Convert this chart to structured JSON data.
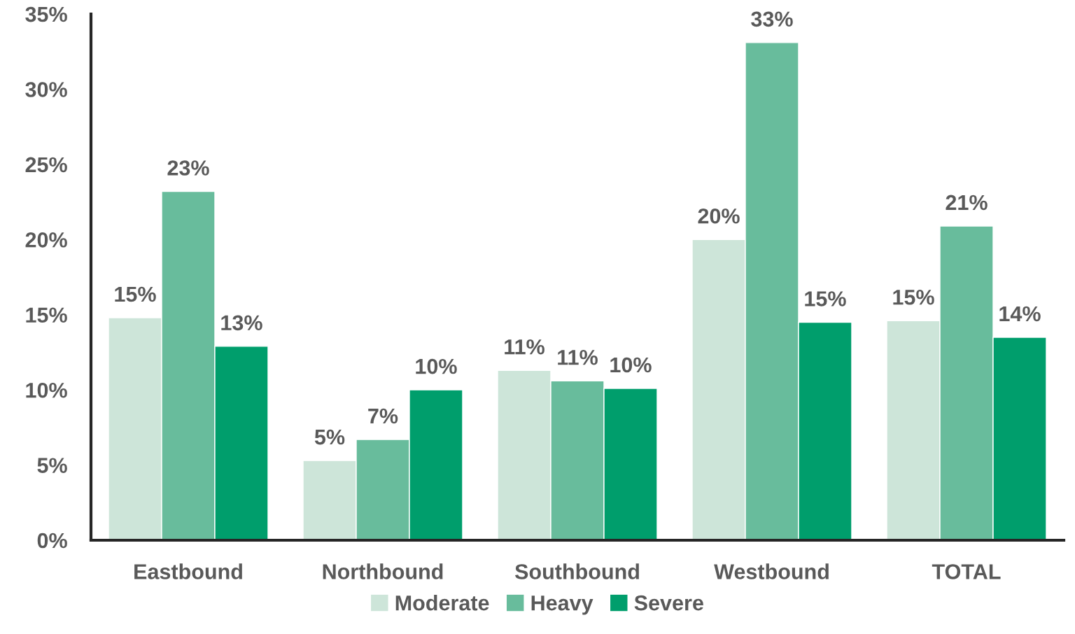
{
  "chart_data": {
    "type": "bar",
    "categories": [
      "Eastbound",
      "Northbound",
      "Southbound",
      "Westbound",
      "TOTAL"
    ],
    "series": [
      {
        "name": "Moderate",
        "color": "#cde5d9",
        "values": [
          14.8,
          5.3,
          11.3,
          20.0,
          14.6
        ],
        "value_labels": [
          "15%",
          "5%",
          "11%",
          "20%",
          "15%"
        ]
      },
      {
        "name": "Heavy",
        "color": "#68bc9c",
        "values": [
          23.2,
          6.7,
          10.6,
          33.1,
          20.9
        ],
        "value_labels": [
          "23%",
          "7%",
          "11%",
          "33%",
          "21%"
        ]
      },
      {
        "name": "Severe",
        "color": "#009e6c",
        "values": [
          12.9,
          10.0,
          10.1,
          14.5,
          13.5
        ],
        "value_labels": [
          "13%",
          "10%",
          "10%",
          "15%",
          "14%"
        ]
      }
    ],
    "ylim": [
      0,
      35
    ],
    "yticks": [
      {
        "value": 0,
        "label": "0%"
      },
      {
        "value": 5,
        "label": "5%"
      },
      {
        "value": 10,
        "label": "10%"
      },
      {
        "value": 15,
        "label": "15%"
      },
      {
        "value": 20,
        "label": "20%"
      },
      {
        "value": 25,
        "label": "25%"
      },
      {
        "value": 30,
        "label": "30%"
      },
      {
        "value": 35,
        "label": "35%"
      }
    ],
    "grid": false,
    "legend": "bottom"
  }
}
